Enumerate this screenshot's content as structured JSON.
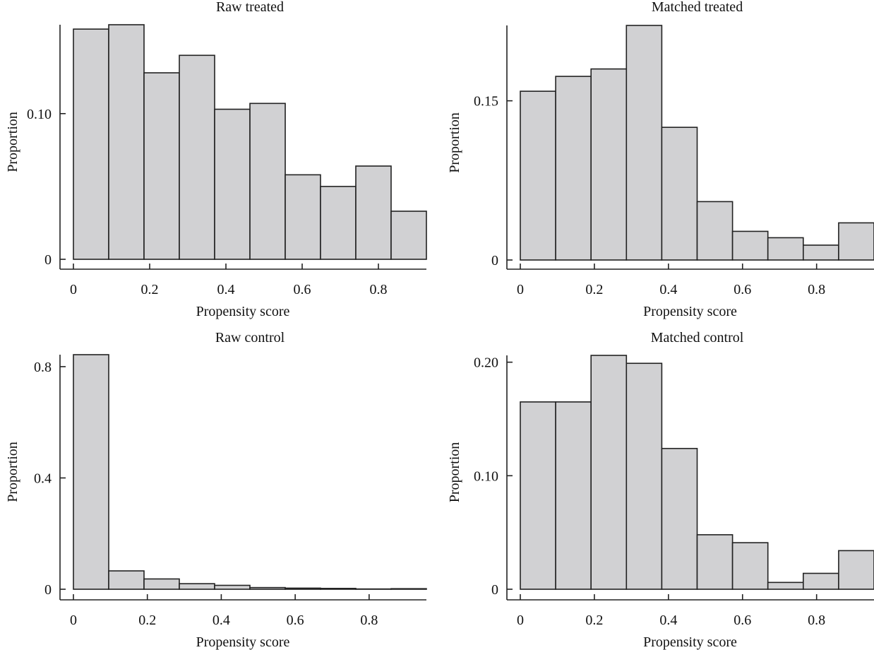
{
  "chart_data": [
    {
      "type": "bar",
      "id": "raw-treated",
      "title": "Raw treated",
      "xlabel": "Propensity score",
      "ylabel": "Proportion",
      "bin_edges": [
        0,
        0.0926,
        0.1852,
        0.2778,
        0.3704,
        0.463,
        0.5556,
        0.6481,
        0.7407,
        0.8333,
        0.9259
      ],
      "values": [
        0.158,
        0.161,
        0.128,
        0.14,
        0.103,
        0.107,
        0.058,
        0.05,
        0.064,
        0.033
      ],
      "xticks": [
        0,
        0.2,
        0.4,
        0.6,
        0.8
      ],
      "xtick_labels": [
        "0",
        "0.2",
        "0.4",
        "0.6",
        "0.8"
      ],
      "yticks": [
        0,
        0.1
      ],
      "ytick_labels": [
        "0",
        "0.10"
      ],
      "xlim": [
        0,
        0.9259
      ],
      "ylim": [
        0,
        0.161
      ],
      "grid": false
    },
    {
      "type": "bar",
      "id": "matched-treated",
      "title": "Matched treated",
      "xlabel": "Propensity score",
      "ylabel": "Proportion",
      "bin_edges": [
        0,
        0.0955,
        0.191,
        0.2865,
        0.382,
        0.4775,
        0.573,
        0.6685,
        0.764,
        0.8595,
        0.955
      ],
      "values": [
        0.159,
        0.173,
        0.18,
        0.221,
        0.125,
        0.055,
        0.027,
        0.021,
        0.014,
        0.035
      ],
      "xticks": [
        0,
        0.2,
        0.4,
        0.6,
        0.8
      ],
      "xtick_labels": [
        "0",
        "0.2",
        "0.4",
        "0.6",
        "0.8"
      ],
      "yticks": [
        0,
        0.15
      ],
      "ytick_labels": [
        "0",
        "0.15"
      ],
      "xlim": [
        0,
        0.955
      ],
      "ylim": [
        0,
        0.221
      ],
      "grid": false
    },
    {
      "type": "bar",
      "id": "raw-control",
      "title": "Raw control",
      "xlabel": "Propensity score",
      "ylabel": "Proportion",
      "bin_edges": [
        0,
        0.0955,
        0.191,
        0.2865,
        0.382,
        0.4775,
        0.573,
        0.6685,
        0.764,
        0.8595,
        0.955
      ],
      "values": [
        0.843,
        0.066,
        0.037,
        0.02,
        0.014,
        0.006,
        0.004,
        0.003,
        0.001,
        0.002
      ],
      "xticks": [
        0,
        0.2,
        0.4,
        0.6,
        0.8
      ],
      "xtick_labels": [
        "0",
        "0.2",
        "0.4",
        "0.6",
        "0.8"
      ],
      "yticks": [
        0,
        0.4,
        0.8
      ],
      "ytick_labels": [
        "0",
        "0.4",
        "0.8"
      ],
      "xlim": [
        0,
        0.955
      ],
      "ylim": [
        0,
        0.843
      ],
      "grid": false
    },
    {
      "type": "bar",
      "id": "matched-control",
      "title": "Matched control",
      "xlabel": "Propensity score",
      "ylabel": "Proportion",
      "bin_edges": [
        0,
        0.0955,
        0.191,
        0.2865,
        0.382,
        0.4775,
        0.573,
        0.6685,
        0.764,
        0.8595,
        0.955
      ],
      "values": [
        0.165,
        0.165,
        0.206,
        0.199,
        0.124,
        0.048,
        0.041,
        0.006,
        0.014,
        0.034
      ],
      "xticks": [
        0,
        0.2,
        0.4,
        0.6,
        0.8
      ],
      "xtick_labels": [
        "0",
        "0.2",
        "0.4",
        "0.6",
        "0.8"
      ],
      "yticks": [
        0,
        0.1,
        0.2
      ],
      "ytick_labels": [
        "0",
        "0.10",
        "0.20"
      ],
      "xlim": [
        0,
        0.955
      ],
      "ylim": [
        0,
        0.206
      ],
      "grid": false
    }
  ]
}
